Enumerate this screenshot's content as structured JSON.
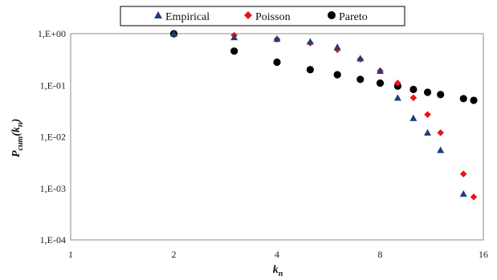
{
  "chart_data": {
    "type": "scatter",
    "title": "",
    "xlabel": "k",
    "xlabel_sub": "n",
    "ylabel": "P",
    "ylabel_sub": "cum",
    "ylabel_arg_open": "(k",
    "ylabel_arg_sub": "n",
    "ylabel_arg_close": ")",
    "x_scale": "log2",
    "y_scale": "log10",
    "xlim": [
      1,
      16
    ],
    "ylim": [
      0.0001,
      1
    ],
    "x_ticks": [
      {
        "value": 1,
        "label": "1"
      },
      {
        "value": 2,
        "label": "2"
      },
      {
        "value": 4,
        "label": "4"
      },
      {
        "value": 8,
        "label": "8"
      },
      {
        "value": 16,
        "label": "16"
      }
    ],
    "y_ticks": [
      {
        "value": 1,
        "label": "1,E+00"
      },
      {
        "value": 0.1,
        "label": "1,E-01"
      },
      {
        "value": 0.01,
        "label": "1,E-02"
      },
      {
        "value": 0.001,
        "label": "1,E-03"
      },
      {
        "value": 0.0001,
        "label": "1,E-04"
      }
    ],
    "grid": true,
    "legend_position": "top",
    "series": [
      {
        "name": "Empirical",
        "marker": "triangle",
        "color": "#1f3d7a",
        "points": [
          {
            "x": 2,
            "y": 1.0
          },
          {
            "x": 3,
            "y": 0.85
          },
          {
            "x": 4,
            "y": 0.79
          },
          {
            "x": 5,
            "y": 0.7
          },
          {
            "x": 6,
            "y": 0.55
          },
          {
            "x": 7,
            "y": 0.33
          },
          {
            "x": 8,
            "y": 0.19
          },
          {
            "x": 9,
            "y": 0.057
          },
          {
            "x": 10,
            "y": 0.023
          },
          {
            "x": 11,
            "y": 0.012
          },
          {
            "x": 12,
            "y": 0.0055
          },
          {
            "x": 14,
            "y": 0.00078
          }
        ]
      },
      {
        "name": "Poisson",
        "marker": "diamond",
        "color": "#e8151b",
        "points": [
          {
            "x": 3,
            "y": 0.93
          },
          {
            "x": 4,
            "y": 0.78
          },
          {
            "x": 5,
            "y": 0.66
          },
          {
            "x": 6,
            "y": 0.49
          },
          {
            "x": 7,
            "y": 0.32
          },
          {
            "x": 8,
            "y": 0.19
          },
          {
            "x": 9,
            "y": 0.11
          },
          {
            "x": 10,
            "y": 0.057
          },
          {
            "x": 11,
            "y": 0.027
          },
          {
            "x": 12,
            "y": 0.012
          },
          {
            "x": 14,
            "y": 0.0019
          },
          {
            "x": 15,
            "y": 0.00068
          }
        ]
      },
      {
        "name": "Pareto",
        "marker": "circle",
        "color": "#000000",
        "points": [
          {
            "x": 2,
            "y": 1.0
          },
          {
            "x": 3,
            "y": 0.46
          },
          {
            "x": 4,
            "y": 0.28
          },
          {
            "x": 5,
            "y": 0.2
          },
          {
            "x": 6,
            "y": 0.16
          },
          {
            "x": 7,
            "y": 0.13
          },
          {
            "x": 8,
            "y": 0.11
          },
          {
            "x": 9,
            "y": 0.096
          },
          {
            "x": 10,
            "y": 0.083
          },
          {
            "x": 11,
            "y": 0.073
          },
          {
            "x": 12,
            "y": 0.066
          },
          {
            "x": 14,
            "y": 0.055
          },
          {
            "x": 15,
            "y": 0.051
          }
        ]
      }
    ]
  }
}
